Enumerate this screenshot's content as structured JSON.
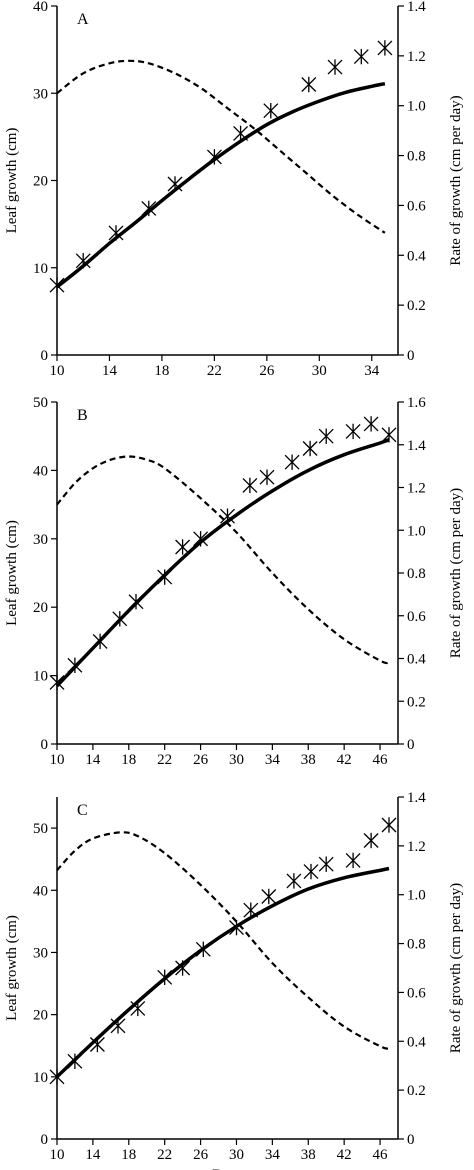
{
  "chart_data": [
    {
      "type": "line",
      "panel": "A",
      "ylabel": "Leaf growth (cm)",
      "y2label": "Rate of growth (cm per day)",
      "xlabel": "",
      "xlim": [
        10,
        36
      ],
      "ylim": [
        0,
        40
      ],
      "y2lim": [
        0,
        1.4
      ],
      "xticks": [
        "10",
        "14",
        "18",
        "22",
        "26",
        "30",
        "34"
      ],
      "yticks": [
        "0",
        "10",
        "20",
        "30",
        "40"
      ],
      "y2ticks": [
        "0",
        "0.2",
        "0.4",
        "0.6",
        "0.8",
        "1.0",
        "1.2",
        "1.4"
      ],
      "observed": {
        "x": [
          10,
          12,
          14.5,
          17,
          19,
          22,
          24,
          26.3,
          29.2,
          31.2,
          33.2,
          35
        ],
        "y": [
          8,
          10.8,
          14,
          16.8,
          19.6,
          22.7,
          25.4,
          28,
          31,
          33,
          34.2,
          35.2
        ]
      },
      "fitted_growth": {
        "x": [
          10,
          12,
          14,
          16,
          18,
          20,
          22,
          24,
          26,
          28,
          30,
          32,
          34,
          35
        ],
        "y": [
          7.8,
          10.2,
          12.8,
          15.2,
          17.7,
          20.1,
          22.4,
          24.5,
          26.4,
          27.9,
          29.1,
          30.1,
          30.8,
          31.1
        ]
      },
      "rate": {
        "x": [
          10,
          12,
          14,
          15.5,
          17,
          19,
          21,
          23,
          25,
          27,
          29,
          31,
          33,
          35
        ],
        "y": [
          1.05,
          1.13,
          1.17,
          1.18,
          1.17,
          1.13,
          1.07,
          0.99,
          0.91,
          0.82,
          0.73,
          0.64,
          0.56,
          0.49
        ]
      }
    },
    {
      "type": "line",
      "panel": "B",
      "ylabel": "Leaf growth (cm)",
      "y2label": "Rate of growth (cm per day)",
      "xlabel": "",
      "xlim": [
        10,
        48
      ],
      "ylim": [
        0,
        50
      ],
      "y2lim": [
        0,
        1.6
      ],
      "xticks": [
        "10",
        "14",
        "18",
        "22",
        "26",
        "30",
        "34",
        "38",
        "42",
        "46"
      ],
      "yticks": [
        "0",
        "10",
        "20",
        "30",
        "40",
        "50"
      ],
      "y2ticks": [
        "0",
        "0.2",
        "0.4",
        "0.6",
        "0.8",
        "1.0",
        "1.2",
        "1.4",
        "1.6"
      ],
      "observed": {
        "x": [
          10,
          12,
          14.8,
          17,
          18.8,
          22,
          24,
          26,
          29,
          31.5,
          33.4,
          36.2,
          38.2,
          40,
          43,
          45,
          47
        ],
        "y": [
          9,
          11.5,
          15,
          18.3,
          20.8,
          24.4,
          28.8,
          30,
          33.3,
          37.8,
          39,
          41.2,
          43.2,
          45,
          45.7,
          46.8,
          45.2
        ]
      },
      "fitted_growth": {
        "x": [
          10,
          14,
          18,
          22,
          26,
          30,
          34,
          38,
          42,
          46,
          47
        ],
        "y": [
          8.5,
          14,
          19.5,
          24.7,
          29.5,
          33.5,
          37,
          40,
          42.3,
          44,
          44.5
        ]
      },
      "rate": {
        "x": [
          10,
          12,
          14,
          16,
          18,
          20,
          22,
          26,
          30,
          34,
          38,
          42,
          46,
          47
        ],
        "y": [
          1.12,
          1.22,
          1.29,
          1.33,
          1.345,
          1.33,
          1.29,
          1.15,
          0.99,
          0.8,
          0.63,
          0.49,
          0.39,
          0.38
        ]
      }
    },
    {
      "type": "line",
      "panel": "C",
      "ylabel": "Leaf growth (cm)",
      "y2label": "Rate of growth (cm per day)",
      "xlabel": "Days",
      "xlim": [
        10,
        48
      ],
      "ylim": [
        0,
        55
      ],
      "y2lim": [
        0,
        1.4
      ],
      "xticks": [
        "10",
        "14",
        "18",
        "22",
        "26",
        "30",
        "34",
        "38",
        "42",
        "46"
      ],
      "yticks": [
        "0",
        "10",
        "20",
        "30",
        "40",
        "50"
      ],
      "y2ticks": [
        "0",
        "0.2",
        "0.4",
        "0.6",
        "0.8",
        "1.0",
        "1.2",
        "1.4"
      ],
      "observed": {
        "x": [
          10,
          12,
          14.5,
          16.8,
          19,
          22,
          24,
          26.3,
          30,
          31.6,
          33.6,
          36.4,
          38.3,
          40,
          43,
          45,
          47
        ],
        "y": [
          10,
          12.5,
          15.2,
          18.2,
          21,
          26,
          27.5,
          30.5,
          34,
          36.8,
          39,
          41.5,
          43,
          44.2,
          44.8,
          48,
          50.5
        ]
      },
      "fitted_growth": {
        "x": [
          10,
          14,
          18,
          22,
          26,
          30,
          34,
          38,
          42,
          46,
          47
        ],
        "y": [
          10,
          15.5,
          20.8,
          25.8,
          30.3,
          34.2,
          37.5,
          40.2,
          42,
          43.2,
          43.5
        ]
      },
      "rate": {
        "x": [
          10,
          12,
          14,
          17,
          19,
          22,
          26,
          30,
          34,
          38,
          42,
          46,
          47
        ],
        "y": [
          1.1,
          1.18,
          1.23,
          1.255,
          1.24,
          1.17,
          1.04,
          0.89,
          0.72,
          0.58,
          0.46,
          0.38,
          0.37
        ]
      }
    }
  ]
}
